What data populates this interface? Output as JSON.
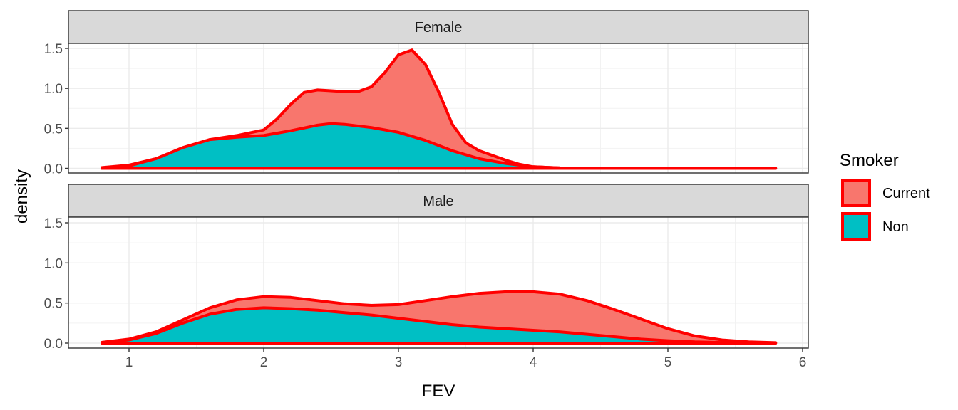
{
  "chart_data": {
    "type": "area",
    "subtype": "density",
    "xlabel": "FEV",
    "ylabel": "density",
    "xlim": [
      0.8,
      5.8
    ],
    "ylim": [
      0,
      1.5
    ],
    "x_ticks": [
      1,
      2,
      3,
      4,
      5,
      6
    ],
    "y_ticks": [
      0.0,
      0.5,
      1.0,
      1.5
    ],
    "y_tick_labels": [
      "0.0",
      "0.5",
      "1.0",
      "1.5"
    ],
    "grid": true,
    "legend": {
      "title": "Smoker",
      "placement": "right",
      "entries": [
        {
          "label": "Current",
          "fill": "#F8766D"
        },
        {
          "label": "Non",
          "fill": "#00BFC4"
        }
      ]
    },
    "outline_color": "#FF0000",
    "panels": [
      {
        "strip": "Female",
        "series": [
          {
            "name": "Current",
            "x": [
              0.8,
              1.0,
              1.2,
              1.4,
              1.6,
              1.8,
              2.0,
              2.1,
              2.2,
              2.3,
              2.4,
              2.5,
              2.6,
              2.7,
              2.8,
              2.9,
              3.0,
              3.1,
              3.2,
              3.3,
              3.4,
              3.5,
              3.6,
              3.7,
              3.8,
              3.9,
              4.0,
              4.2,
              4.4,
              5.8
            ],
            "y": [
              0.01,
              0.04,
              0.12,
              0.25,
              0.36,
              0.41,
              0.48,
              0.62,
              0.8,
              0.95,
              0.98,
              0.97,
              0.96,
              0.96,
              1.02,
              1.2,
              1.42,
              1.48,
              1.3,
              0.95,
              0.55,
              0.32,
              0.22,
              0.16,
              0.1,
              0.05,
              0.02,
              0.005,
              0.0,
              0.0
            ]
          },
          {
            "name": "Non",
            "x": [
              0.8,
              1.0,
              1.2,
              1.4,
              1.6,
              1.8,
              2.0,
              2.2,
              2.4,
              2.5,
              2.6,
              2.8,
              3.0,
              3.2,
              3.4,
              3.6,
              3.8,
              4.0,
              4.2,
              4.4,
              5.8
            ],
            "y": [
              0.005,
              0.03,
              0.12,
              0.26,
              0.36,
              0.39,
              0.41,
              0.47,
              0.54,
              0.56,
              0.55,
              0.51,
              0.45,
              0.35,
              0.22,
              0.12,
              0.06,
              0.02,
              0.005,
              0.0,
              0.0
            ]
          }
        ]
      },
      {
        "strip": "Male",
        "series": [
          {
            "name": "Current",
            "x": [
              0.8,
              1.0,
              1.2,
              1.4,
              1.6,
              1.8,
              2.0,
              2.2,
              2.4,
              2.6,
              2.8,
              3.0,
              3.2,
              3.4,
              3.6,
              3.8,
              4.0,
              4.2,
              4.4,
              4.6,
              4.8,
              5.0,
              5.2,
              5.4,
              5.6,
              5.8
            ],
            "y": [
              0.01,
              0.05,
              0.14,
              0.29,
              0.44,
              0.54,
              0.58,
              0.57,
              0.53,
              0.49,
              0.47,
              0.48,
              0.53,
              0.58,
              0.62,
              0.64,
              0.64,
              0.61,
              0.53,
              0.42,
              0.3,
              0.18,
              0.09,
              0.04,
              0.015,
              0.005
            ]
          },
          {
            "name": "Non",
            "x": [
              0.8,
              1.0,
              1.2,
              1.4,
              1.6,
              1.8,
              2.0,
              2.2,
              2.4,
              2.6,
              2.8,
              3.0,
              3.2,
              3.4,
              3.6,
              3.8,
              4.0,
              4.2,
              4.4,
              4.6,
              4.8,
              5.0,
              5.2,
              5.4,
              5.6,
              5.8
            ],
            "y": [
              0.005,
              0.04,
              0.12,
              0.25,
              0.36,
              0.42,
              0.44,
              0.43,
              0.41,
              0.38,
              0.35,
              0.31,
              0.27,
              0.23,
              0.2,
              0.18,
              0.16,
              0.14,
              0.11,
              0.08,
              0.05,
              0.03,
              0.015,
              0.008,
              0.003,
              0.001
            ]
          }
        ]
      }
    ]
  }
}
